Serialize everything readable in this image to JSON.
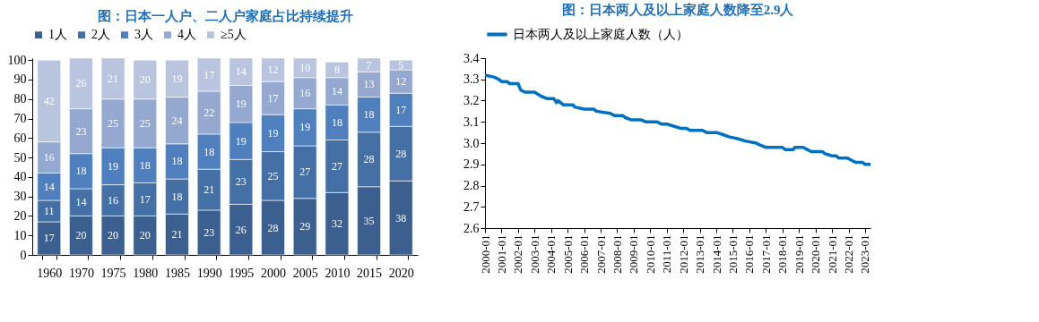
{
  "chart_data": [
    {
      "type": "bar",
      "title": "图：日本一人户、二人户家庭占比持续提升",
      "stacked": true,
      "data_labels": true,
      "legend": "top",
      "grid": false,
      "categories": [
        "1960",
        "1970",
        "1975",
        "1980",
        "1985",
        "1990",
        "1995",
        "2000",
        "2005",
        "2010",
        "2015",
        "2020"
      ],
      "ylim": [
        0,
        101
      ],
      "yticks": [
        0,
        10,
        20,
        30,
        40,
        50,
        60,
        70,
        80,
        90,
        100
      ],
      "series": [
        {
          "name": "1人",
          "color": "#3b5f8f",
          "values": [
            17,
            20,
            20,
            20,
            21,
            23,
            26,
            28,
            29,
            32,
            35,
            38
          ]
        },
        {
          "name": "2人",
          "color": "#4570a5",
          "values": [
            11,
            14,
            16,
            17,
            18,
            21,
            23,
            25,
            27,
            27,
            28,
            28
          ]
        },
        {
          "name": "3人",
          "color": "#4f80bd",
          "values": [
            14,
            18,
            19,
            18,
            18,
            18,
            19,
            19,
            19,
            18,
            18,
            17
          ]
        },
        {
          "name": "4人",
          "color": "#94a8d0",
          "values": [
            16,
            23,
            25,
            25,
            24,
            22,
            19,
            17,
            16,
            14,
            13,
            12
          ]
        },
        {
          "name": "≥5人",
          "color": "#b9c4df",
          "values": [
            42,
            26,
            21,
            20,
            19,
            17,
            14,
            12,
            10,
            8,
            7,
            5
          ]
        }
      ]
    },
    {
      "type": "line",
      "title": "图：日本两人及以上家庭人数降至2.9人",
      "legend": "top",
      "grid": false,
      "marker": "none",
      "line_style": "solid",
      "xlim": [
        "2000-01",
        "2023-05"
      ],
      "xticks": [
        "2000-01",
        "2001-01",
        "2002-01",
        "2003-01",
        "2004-01",
        "2005-01",
        "2006-01",
        "2007-01",
        "2008-01",
        "2009-01",
        "2010-01",
        "2011-01",
        "2012-01",
        "2013-01",
        "2014-01",
        "2015-01",
        "2016-01",
        "2017-01",
        "2018-01",
        "2019-01",
        "2020-01",
        "2021-01",
        "2022-01",
        "2023-01"
      ],
      "ylim": [
        2.6,
        3.4
      ],
      "yticks": [
        2.6,
        2.7,
        2.8,
        2.9,
        {
          "value": 3.0,
          "label": "3.0"
        },
        3.1,
        3.2,
        3.3,
        3.4
      ],
      "x": [
        "2000-01",
        "2000-08",
        "2000-11",
        "2001-01",
        "2001-05",
        "2001-07",
        "2002-01",
        "2002-03",
        "2002-06",
        "2003-01",
        "2003-06",
        "2003-10",
        "2004-03",
        "2004-05",
        "2004-06",
        "2004-10",
        "2005-05",
        "2005-06",
        "2006-01",
        "2006-08",
        "2006-10",
        "2007-08",
        "2007-11",
        "2008-05",
        "2008-07",
        "2008-11",
        "2009-06",
        "2009-10",
        "2010-06",
        "2010-09",
        "2011-01",
        "2011-06",
        "2011-11",
        "2012-03",
        "2012-06",
        "2013-03",
        "2013-06",
        "2014-01",
        "2014-06",
        "2014-10",
        "2015-05",
        "2015-10",
        "2016-06",
        "2016-09",
        "2017-01",
        "2017-06",
        "2018-01",
        "2018-03",
        "2018-09",
        "2018-10",
        "2019-04",
        "2019-07",
        "2019-10",
        "2020-06",
        "2020-08",
        "2021-01",
        "2021-04",
        "2021-06",
        "2021-12",
        "2022-03",
        "2022-06",
        "2022-11",
        "2023-01",
        "2023-05"
      ],
      "series": [
        {
          "name": "日本两人及以上家庭人数（人）",
          "color": "#0070c0",
          "values": [
            3.32,
            3.31,
            3.3,
            3.29,
            3.29,
            3.28,
            3.28,
            3.25,
            3.24,
            3.24,
            3.22,
            3.21,
            3.21,
            3.19,
            3.2,
            3.18,
            3.18,
            3.17,
            3.16,
            3.16,
            3.15,
            3.14,
            3.13,
            3.13,
            3.12,
            3.11,
            3.11,
            3.1,
            3.1,
            3.09,
            3.09,
            3.08,
            3.07,
            3.07,
            3.06,
            3.06,
            3.05,
            3.05,
            3.04,
            3.03,
            3.02,
            3.01,
            3.0,
            2.99,
            2.98,
            2.98,
            2.98,
            2.97,
            2.97,
            2.98,
            2.98,
            2.97,
            2.96,
            2.96,
            2.95,
            2.94,
            2.94,
            2.93,
            2.93,
            2.92,
            2.91,
            2.91,
            2.9,
            2.9
          ]
        }
      ]
    }
  ]
}
